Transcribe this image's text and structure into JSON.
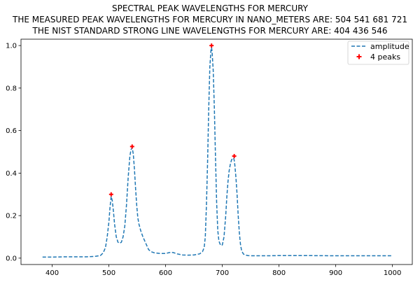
{
  "chart_data": {
    "type": "line",
    "title_lines": [
      "SPECTRAL PEAK WAVELENGTHS FOR MERCURY",
      "THE MEASURED PEAK WAVELENGTHS FOR MERCURY IN NANO_METERS ARE: 504 541 681 721",
      "THE NIST STANDARD STRONG LINE WAVELENGTHS FOR MERCURY ARE: 404 436 546"
    ],
    "xlabel": "",
    "ylabel": "",
    "xlim": [
      345,
      1035
    ],
    "ylim": [
      -0.03,
      1.03
    ],
    "xticks": [
      400,
      500,
      600,
      700,
      800,
      900,
      1000
    ],
    "yticks": [
      0.0,
      0.2,
      0.4,
      0.6,
      0.8,
      1.0
    ],
    "ytick_labels": [
      "0.0",
      "0.2",
      "0.4",
      "0.6",
      "0.8",
      "1.0"
    ],
    "grid": false,
    "legend_position": "top-right",
    "series": [
      {
        "name": "amplitude",
        "style": "dashed",
        "color": "#1f77b4",
        "x": [
          383,
          400,
          420,
          440,
          460,
          475,
          485,
          490,
          494,
          497,
          500,
          502,
          504,
          506,
          508,
          510,
          513,
          516,
          519,
          522,
          525,
          528,
          531,
          534,
          537,
          539,
          541,
          543,
          545,
          547,
          549,
          551,
          553,
          556,
          560,
          565,
          570,
          575,
          580,
          590,
          600,
          605,
          610,
          615,
          620,
          630,
          640,
          650,
          660,
          665,
          668,
          670,
          672,
          674,
          676,
          678,
          680,
          681,
          682,
          684,
          686,
          688,
          690,
          692,
          694,
          697,
          700,
          703,
          706,
          708,
          710,
          712,
          714,
          716,
          718,
          720,
          721,
          722,
          724,
          726,
          728,
          730,
          732,
          734,
          737,
          740,
          745,
          750,
          760,
          780,
          800,
          820,
          850,
          900,
          950,
          1000
        ],
        "y": [
          0.005,
          0.005,
          0.006,
          0.006,
          0.006,
          0.008,
          0.012,
          0.025,
          0.05,
          0.1,
          0.17,
          0.24,
          0.29,
          0.27,
          0.22,
          0.16,
          0.1,
          0.075,
          0.07,
          0.075,
          0.1,
          0.15,
          0.25,
          0.38,
          0.48,
          0.51,
          0.52,
          0.49,
          0.42,
          0.33,
          0.25,
          0.19,
          0.16,
          0.13,
          0.1,
          0.07,
          0.04,
          0.03,
          0.025,
          0.022,
          0.022,
          0.025,
          0.028,
          0.025,
          0.02,
          0.015,
          0.014,
          0.015,
          0.02,
          0.03,
          0.05,
          0.1,
          0.25,
          0.45,
          0.7,
          0.9,
          0.98,
          0.99,
          0.97,
          0.88,
          0.7,
          0.47,
          0.26,
          0.13,
          0.08,
          0.06,
          0.062,
          0.1,
          0.2,
          0.29,
          0.36,
          0.41,
          0.44,
          0.46,
          0.47,
          0.47,
          0.46,
          0.44,
          0.38,
          0.3,
          0.2,
          0.12,
          0.065,
          0.035,
          0.02,
          0.015,
          0.012,
          0.011,
          0.011,
          0.011,
          0.012,
          0.012,
          0.012,
          0.011,
          0.011,
          0.011
        ]
      },
      {
        "name": "4 peaks",
        "style": "markers",
        "marker": "plus",
        "color": "#ff0000",
        "x": [
          504,
          541,
          681,
          721
        ],
        "y": [
          0.3,
          0.525,
          1.0,
          0.48
        ]
      }
    ]
  }
}
